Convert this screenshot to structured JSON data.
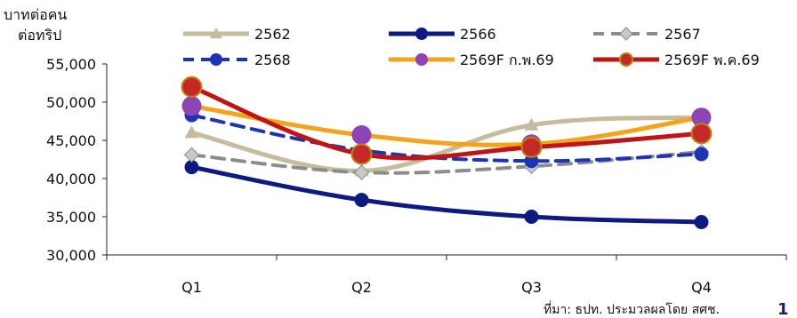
{
  "chart_data": {
    "type": "line",
    "ylabel": "บาทต่อคน ต่อทริป",
    "ylabel_lines": [
      "บาทต่อคน",
      "ต่อทริป"
    ],
    "categories": [
      "Q1",
      "Q2",
      "Q3",
      "Q4"
    ],
    "ylim": [
      30000,
      55000
    ],
    "yticks": [
      30000,
      35000,
      40000,
      45000,
      50000,
      55000
    ],
    "ytick_labels": [
      "30,000",
      "35,000",
      "40,000",
      "45,000",
      "50,000",
      "55,000"
    ],
    "grid": false,
    "legend_position": "top",
    "series": [
      {
        "name": "2562",
        "values": [
          46000,
          41000,
          47000,
          48000
        ],
        "color": "#c4bc9c",
        "dash": "solid",
        "marker": "triangle",
        "width": 5
      },
      {
        "name": "2566",
        "values": [
          41500,
          37200,
          35000,
          34300
        ],
        "color": "#0d1a80",
        "dash": "solid",
        "marker": "circle",
        "width": 5
      },
      {
        "name": "2567",
        "values": [
          43100,
          40800,
          41600,
          43500
        ],
        "color": "#8c8c8c",
        "dash": "dash",
        "marker": "diamond",
        "width": 4
      },
      {
        "name": "2568",
        "values": [
          48300,
          43700,
          42300,
          43200
        ],
        "color": "#1c35b4",
        "dash": "dash",
        "marker": "circle",
        "width": 4
      },
      {
        "name": "2569F ก.พ.69",
        "values": [
          49500,
          45700,
          44500,
          48000
        ],
        "color": "#f5a31a",
        "dash": "solid",
        "marker": "circle",
        "width": 5,
        "marker_color": "#8e44b4"
      },
      {
        "name": "2569F พ.ค.69",
        "values": [
          52000,
          43200,
          44100,
          45900
        ],
        "color": "#c01414",
        "dash": "solid",
        "marker": "circle",
        "width": 5,
        "marker_color": "#c62828",
        "marker_edge": "#b8860b"
      }
    ]
  },
  "footer": {
    "source": "ที่มา: ธปท. ประมวลผลโดย สศช.",
    "page_number": "1"
  }
}
